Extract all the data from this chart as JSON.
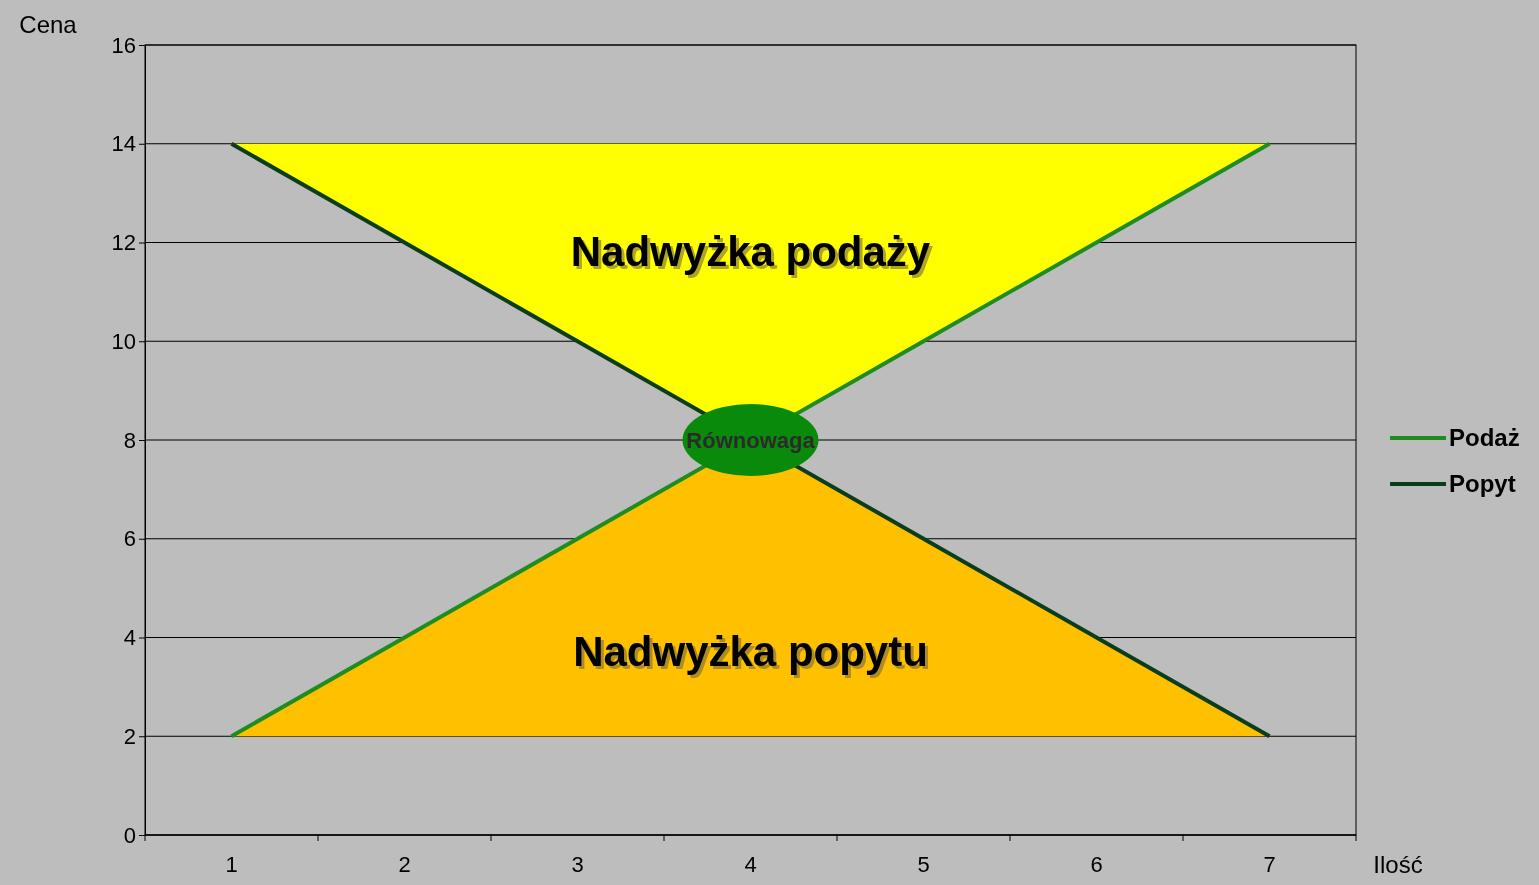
{
  "chart_data": {
    "type": "line",
    "xlabel": "Ilość",
    "ylabel": "Cena",
    "categories": [
      "1",
      "2",
      "3",
      "4",
      "5",
      "6",
      "7"
    ],
    "series": [
      {
        "name": "Podaż",
        "color": "#1e8c1e",
        "values": [
          2,
          4,
          6,
          null,
          10,
          12,
          14
        ]
      },
      {
        "name": "Popyt",
        "color": "#0b3d17",
        "values": [
          14,
          12,
          10,
          null,
          6,
          4,
          2
        ]
      }
    ],
    "ylim": [
      0,
      16
    ],
    "yticks": [
      0,
      2,
      4,
      6,
      8,
      10,
      12,
      14,
      16
    ],
    "grid": "y",
    "legend": "right",
    "marker": "none",
    "line_style": "solid",
    "annotations": [
      "Nadwyżka podaży",
      "Nadwyżka popytu",
      "Równowaga"
    ]
  }
}
